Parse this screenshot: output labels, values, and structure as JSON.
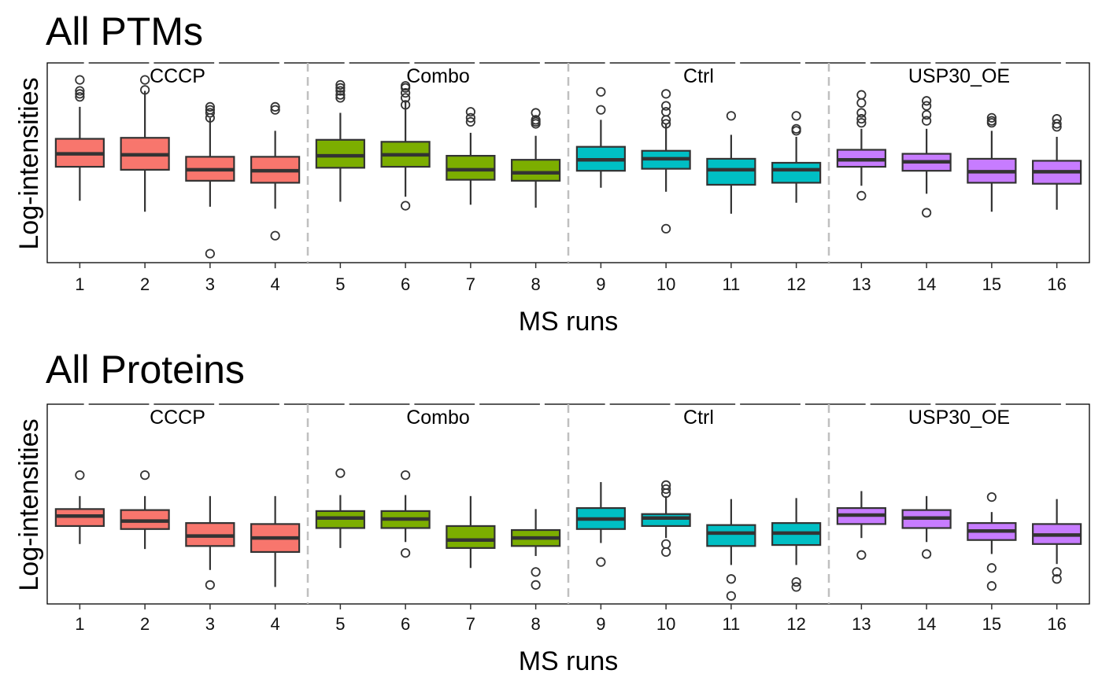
{
  "chart_data": [
    {
      "type": "boxplot",
      "title": "All PTMs",
      "xlabel": "MS runs",
      "ylabel": "Log-intensities",
      "categories": [
        "1",
        "2",
        "3",
        "4",
        "5",
        "6",
        "7",
        "8",
        "9",
        "10",
        "11",
        "12",
        "13",
        "14",
        "15",
        "16"
      ],
      "groups": [
        {
          "name": "CCCP",
          "runs": [
            1,
            2,
            3,
            4
          ],
          "color": "#F8766D"
        },
        {
          "name": "Combo",
          "runs": [
            5,
            6,
            7,
            8
          ],
          "color": "#7CAE00"
        },
        {
          "name": "Ctrl",
          "runs": [
            9,
            10,
            11,
            12
          ],
          "color": "#00BFC4"
        },
        {
          "name": "USP30_OE",
          "runs": [
            13,
            14,
            15,
            16
          ],
          "color": "#C77CFF"
        }
      ],
      "y_tick_labels_shown": false,
      "ylim": [
        0,
        100
      ],
      "boxes": [
        {
          "run": "1",
          "lower_whisker": 31,
          "q1": 48,
          "median": 54.5,
          "q3": 62,
          "upper_whisker": 78,
          "outliers": [
            83,
            84.5,
            86,
            91.5
          ]
        },
        {
          "run": "2",
          "lower_whisker": 25.5,
          "q1": 46.5,
          "median": 54,
          "q3": 62.5,
          "upper_whisker": 86,
          "outliers": [
            86.5,
            91.5
          ]
        },
        {
          "run": "3",
          "lower_whisker": 28,
          "q1": 41,
          "median": 46.5,
          "q3": 53,
          "upper_whisker": 72.5,
          "outliers": [
            4.5,
            72.5,
            75,
            76.5,
            78
          ]
        },
        {
          "run": "4",
          "lower_whisker": 27,
          "q1": 40,
          "median": 46,
          "q3": 53,
          "upper_whisker": 66,
          "outliers": [
            13.5,
            76.5,
            78
          ]
        },
        {
          "run": "5",
          "lower_whisker": 30.5,
          "q1": 47.5,
          "median": 53.5,
          "q3": 61.5,
          "upper_whisker": 75,
          "outliers": [
            82.5,
            84,
            86,
            87.5,
            89
          ]
        },
        {
          "run": "6",
          "lower_whisker": 33,
          "q1": 48,
          "median": 54,
          "q3": 60.5,
          "upper_whisker": 81,
          "outliers": [
            28.5,
            79,
            82.5,
            85,
            87.5,
            88.5
          ]
        },
        {
          "run": "7",
          "lower_whisker": 29,
          "q1": 41.5,
          "median": 46.5,
          "q3": 53.5,
          "upper_whisker": 65,
          "outliers": [
            70.5,
            72.5,
            75.5
          ]
        },
        {
          "run": "8",
          "lower_whisker": 27.5,
          "q1": 41,
          "median": 45,
          "q3": 51.5,
          "upper_whisker": 63.5,
          "outliers": [
            69.5,
            70.5,
            71.5,
            75
          ]
        },
        {
          "run": "9",
          "lower_whisker": 37.5,
          "q1": 46,
          "median": 51.5,
          "q3": 58,
          "upper_whisker": 71.5,
          "outliers": [
            76.5,
            85.5
          ]
        },
        {
          "run": "10",
          "lower_whisker": 35.5,
          "q1": 47,
          "median": 52,
          "q3": 56,
          "upper_whisker": 69.5,
          "outliers": [
            17,
            69.5,
            71.5,
            75.5,
            78.5,
            84.5
          ]
        },
        {
          "run": "11",
          "lower_whisker": 24.5,
          "q1": 39,
          "median": 46.5,
          "q3": 52,
          "upper_whisker": 64,
          "outliers": [
            73.5
          ]
        },
        {
          "run": "12",
          "lower_whisker": 30,
          "q1": 40,
          "median": 46.5,
          "q3": 50,
          "upper_whisker": 63,
          "outliers": [
            66,
            67,
            73.5
          ]
        },
        {
          "run": "13",
          "lower_whisker": 38.5,
          "q1": 48,
          "median": 51.5,
          "q3": 56.5,
          "upper_whisker": 67,
          "outliers": [
            33.5,
            70,
            72,
            75,
            80,
            84
          ]
        },
        {
          "run": "14",
          "lower_whisker": 34.5,
          "q1": 46,
          "median": 50.5,
          "q3": 54.5,
          "upper_whisker": 67,
          "outliers": [
            25,
            71,
            74,
            78.5,
            81
          ]
        },
        {
          "run": "15",
          "lower_whisker": 25.5,
          "q1": 40,
          "median": 45.5,
          "q3": 52,
          "upper_whisker": 66,
          "outliers": [
            70,
            71,
            72.5
          ]
        },
        {
          "run": "16",
          "lower_whisker": 26.5,
          "q1": 39.5,
          "median": 45.5,
          "q3": 51,
          "upper_whisker": 63,
          "outliers": [
            68,
            69.5,
            72
          ]
        }
      ]
    },
    {
      "type": "boxplot",
      "title": "All Proteins",
      "xlabel": "MS runs",
      "ylabel": "Log-intensities",
      "categories": [
        "1",
        "2",
        "3",
        "4",
        "5",
        "6",
        "7",
        "8",
        "9",
        "10",
        "11",
        "12",
        "13",
        "14",
        "15",
        "16"
      ],
      "groups": [
        {
          "name": "CCCP",
          "runs": [
            1,
            2,
            3,
            4
          ],
          "color": "#F8766D"
        },
        {
          "name": "Combo",
          "runs": [
            5,
            6,
            7,
            8
          ],
          "color": "#7CAE00"
        },
        {
          "name": "Ctrl",
          "runs": [
            9,
            10,
            11,
            12
          ],
          "color": "#00BFC4"
        },
        {
          "name": "USP30_OE",
          "runs": [
            13,
            14,
            15,
            16
          ],
          "color": "#C77CFF"
        }
      ],
      "y_tick_labels_shown": false,
      "ylim": [
        0,
        100
      ],
      "boxes": [
        {
          "run": "1",
          "lower_whisker": 30,
          "q1": 39,
          "median": 44,
          "q3": 47.5,
          "upper_whisker": 54,
          "outliers": [
            64.5
          ]
        },
        {
          "run": "2",
          "lower_whisker": 27.5,
          "q1": 37.5,
          "median": 41.5,
          "q3": 47,
          "upper_whisker": 54,
          "outliers": [
            64.5
          ]
        },
        {
          "run": "3",
          "lower_whisker": 17,
          "q1": 29,
          "median": 34,
          "q3": 40.5,
          "upper_whisker": 54,
          "outliers": [
            9.5
          ]
        },
        {
          "run": "4",
          "lower_whisker": 8.5,
          "q1": 26,
          "median": 33,
          "q3": 40,
          "upper_whisker": 54,
          "outliers": []
        },
        {
          "run": "5",
          "lower_whisker": 28,
          "q1": 38,
          "median": 43,
          "q3": 46.5,
          "upper_whisker": 54.5,
          "outliers": [
            65.5
          ]
        },
        {
          "run": "6",
          "lower_whisker": 31,
          "q1": 38,
          "median": 42.5,
          "q3": 46.5,
          "upper_whisker": 54.5,
          "outliers": [
            25.5,
            64.5
          ]
        },
        {
          "run": "7",
          "lower_whisker": 18,
          "q1": 28,
          "median": 32,
          "q3": 39,
          "upper_whisker": 54,
          "outliers": []
        },
        {
          "run": "8",
          "lower_whisker": 24,
          "q1": 29,
          "median": 33,
          "q3": 37,
          "upper_whisker": 47.5,
          "outliers": [
            9.5,
            16
          ]
        },
        {
          "run": "9",
          "lower_whisker": 30.5,
          "q1": 37.5,
          "median": 42.5,
          "q3": 48,
          "upper_whisker": 61,
          "outliers": [
            21
          ]
        },
        {
          "run": "10",
          "lower_whisker": 33,
          "q1": 39,
          "median": 43,
          "q3": 45,
          "upper_whisker": 54,
          "outliers": [
            26,
            30,
            55.5,
            57.5,
            59.5
          ]
        },
        {
          "run": "11",
          "lower_whisker": 19.5,
          "q1": 29,
          "median": 35.5,
          "q3": 39.5,
          "upper_whisker": 52.5,
          "outliers": [
            4,
            12.5
          ]
        },
        {
          "run": "12",
          "lower_whisker": 19.5,
          "q1": 29.5,
          "median": 35.5,
          "q3": 40.5,
          "upper_whisker": 53,
          "outliers": [
            8.5,
            11
          ]
        },
        {
          "run": "13",
          "lower_whisker": 33,
          "q1": 40,
          "median": 44.5,
          "q3": 48,
          "upper_whisker": 56.5,
          "outliers": [
            24.5
          ]
        },
        {
          "run": "14",
          "lower_whisker": 31,
          "q1": 38,
          "median": 43,
          "q3": 47,
          "upper_whisker": 54,
          "outliers": [
            25
          ]
        },
        {
          "run": "15",
          "lower_whisker": 25,
          "q1": 32,
          "median": 36.5,
          "q3": 40.5,
          "upper_whisker": 46,
          "outliers": [
            9,
            18,
            53.5
          ]
        },
        {
          "run": "16",
          "lower_whisker": 20,
          "q1": 30,
          "median": 34.5,
          "q3": 40,
          "upper_whisker": 52.5,
          "outliers": [
            12.5,
            16
          ]
        }
      ]
    }
  ]
}
